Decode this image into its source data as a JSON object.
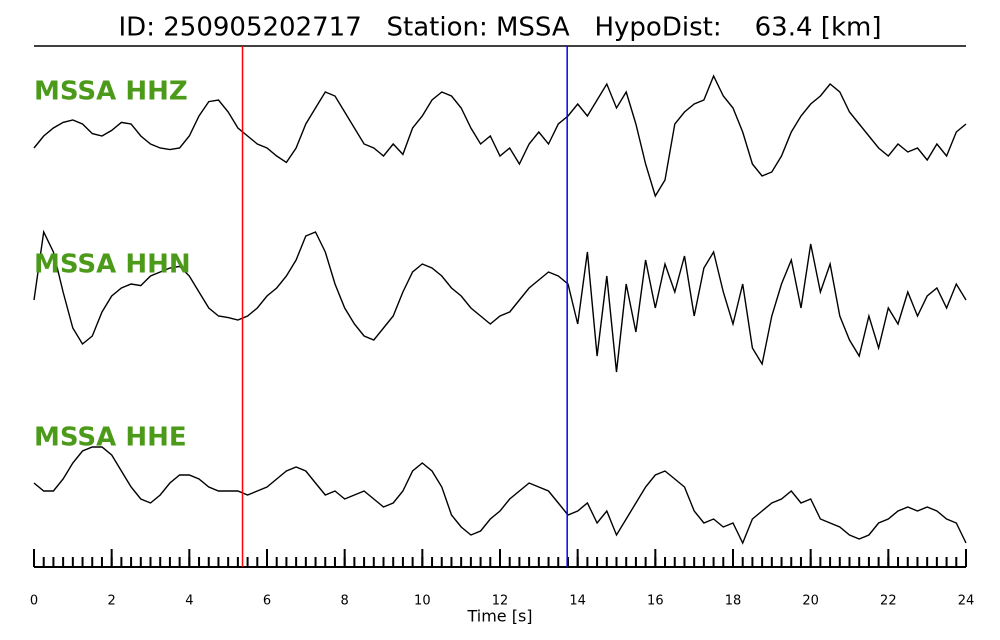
{
  "chart_data": {
    "type": "seismogram",
    "title": "ID: 250905202717   Station: MSSA   HypoDist:    63.4 [km]",
    "xlabel": "Time [s]",
    "xlim": [
      0,
      24
    ],
    "xticks": [
      0,
      2,
      4,
      6,
      8,
      10,
      12,
      14,
      16,
      18,
      20,
      22,
      24
    ],
    "xminor_step": 0.25,
    "ylim": [
      -1,
      1
    ],
    "label_color": "#4c9a1a",
    "picks": [
      {
        "time": 5.37,
        "color": "#ff0000"
      },
      {
        "time": 13.73,
        "color": "#0000ff"
      }
    ],
    "x": [
      0,
      0.25,
      0.5,
      0.75,
      1,
      1.25,
      1.5,
      1.75,
      2,
      2.25,
      2.5,
      2.75,
      3,
      3.25,
      3.5,
      3.75,
      4,
      4.25,
      4.5,
      4.75,
      5,
      5.25,
      5.5,
      5.75,
      6,
      6.25,
      6.5,
      6.75,
      7,
      7.25,
      7.5,
      7.75,
      8,
      8.25,
      8.5,
      8.75,
      9,
      9.25,
      9.5,
      9.75,
      10,
      10.25,
      10.5,
      10.75,
      11,
      11.25,
      11.5,
      11.75,
      12,
      12.25,
      12.5,
      12.75,
      13,
      13.25,
      13.5,
      13.75,
      14,
      14.25,
      14.5,
      14.75,
      15,
      15.25,
      15.5,
      15.75,
      16,
      16.25,
      16.5,
      16.75,
      17,
      17.25,
      17.5,
      17.75,
      18,
      18.25,
      18.5,
      18.75,
      19,
      19.25,
      19.5,
      19.75,
      20,
      20.25,
      20.5,
      20.75,
      21,
      21.25,
      21.5,
      21.75,
      22,
      22.25,
      22.5,
      22.75,
      23,
      23.25,
      23.5,
      23.75,
      24
    ],
    "series": [
      {
        "name": "MSSA HHZ",
        "color": "#000000",
        "values": [
          -0.1,
          0.05,
          0.15,
          0.22,
          0.25,
          0.2,
          0.08,
          0.05,
          0.12,
          0.22,
          0.2,
          0.05,
          -0.05,
          -0.1,
          -0.12,
          -0.1,
          0.05,
          0.3,
          0.48,
          0.5,
          0.35,
          0.15,
          0.05,
          -0.05,
          -0.1,
          -0.2,
          -0.28,
          -0.1,
          0.2,
          0.4,
          0.6,
          0.55,
          0.35,
          0.15,
          -0.05,
          -0.1,
          -0.2,
          -0.05,
          -0.18,
          0.15,
          0.3,
          0.5,
          0.6,
          0.55,
          0.4,
          0.15,
          -0.05,
          0.05,
          -0.2,
          -0.1,
          -0.3,
          -0.05,
          0.1,
          -0.05,
          0.2,
          0.3,
          0.45,
          0.3,
          0.5,
          0.7,
          0.4,
          0.6,
          0.2,
          -0.3,
          -0.7,
          -0.5,
          0.2,
          0.35,
          0.45,
          0.5,
          0.8,
          0.55,
          0.4,
          0.1,
          -0.3,
          -0.45,
          -0.4,
          -0.2,
          0.1,
          0.3,
          0.45,
          0.55,
          0.7,
          0.6,
          0.35,
          0.2,
          0.05,
          -0.1,
          -0.2,
          -0.05,
          -0.15,
          -0.1,
          -0.25,
          -0.05,
          -0.2,
          0.1,
          0.2
        ]
      },
      {
        "name": "MSSA HHN",
        "color": "#000000",
        "values": [
          0,
          0.85,
          0.6,
          0.1,
          -0.35,
          -0.55,
          -0.45,
          -0.15,
          0.05,
          0.15,
          0.2,
          0.18,
          0.3,
          0.35,
          0.4,
          0.42,
          0.3,
          0.1,
          -0.1,
          -0.2,
          -0.22,
          -0.25,
          -0.2,
          -0.1,
          0.05,
          0.15,
          0.3,
          0.5,
          0.8,
          0.85,
          0.6,
          0.2,
          -0.1,
          -0.3,
          -0.45,
          -0.5,
          -0.35,
          -0.2,
          0.1,
          0.35,
          0.45,
          0.4,
          0.3,
          0.15,
          0.05,
          -0.1,
          -0.2,
          -0.3,
          -0.2,
          -0.15,
          0,
          0.15,
          0.25,
          0.35,
          0.3,
          0.2,
          -0.3,
          0.6,
          -0.7,
          0.3,
          -0.9,
          0.2,
          -0.4,
          0.5,
          -0.1,
          0.45,
          0.1,
          0.55,
          -0.2,
          0.4,
          0.6,
          0.1,
          -0.3,
          0.2,
          -0.6,
          -0.8,
          -0.2,
          0.2,
          0.5,
          -0.1,
          0.7,
          0.1,
          0.45,
          -0.2,
          -0.5,
          -0.7,
          -0.2,
          -0.6,
          -0.1,
          -0.3,
          0.1,
          -0.2,
          0.05,
          0.15,
          -0.1,
          0.2,
          0
        ]
      },
      {
        "name": "MSSA HHE",
        "color": "#000000",
        "values": [
          0.15,
          0.05,
          0.05,
          0.2,
          0.4,
          0.55,
          0.6,
          0.6,
          0.5,
          0.3,
          0.1,
          -0.05,
          -0.1,
          0,
          0.15,
          0.25,
          0.25,
          0.2,
          0.1,
          0.05,
          0.05,
          0.05,
          0,
          0.05,
          0.1,
          0.2,
          0.3,
          0.35,
          0.3,
          0.15,
          0,
          0.05,
          -0.05,
          0,
          0.05,
          -0.05,
          -0.15,
          -0.1,
          0.05,
          0.3,
          0.4,
          0.3,
          0.1,
          -0.25,
          -0.4,
          -0.5,
          -0.45,
          -0.3,
          -0.2,
          -0.05,
          0.05,
          0.15,
          0.1,
          0.05,
          -0.1,
          -0.25,
          -0.2,
          -0.1,
          -0.35,
          -0.2,
          -0.5,
          -0.3,
          -0.1,
          0.1,
          0.25,
          0.3,
          0.2,
          0.1,
          -0.2,
          -0.35,
          -0.3,
          -0.4,
          -0.35,
          -0.6,
          -0.3,
          -0.2,
          -0.1,
          -0.05,
          0.05,
          -0.1,
          -0.05,
          -0.3,
          -0.35,
          -0.4,
          -0.5,
          -0.55,
          -0.5,
          -0.35,
          -0.3,
          -0.2,
          -0.15,
          -0.2,
          -0.15,
          -0.2,
          -0.3,
          -0.35,
          -0.6
        ]
      }
    ]
  }
}
